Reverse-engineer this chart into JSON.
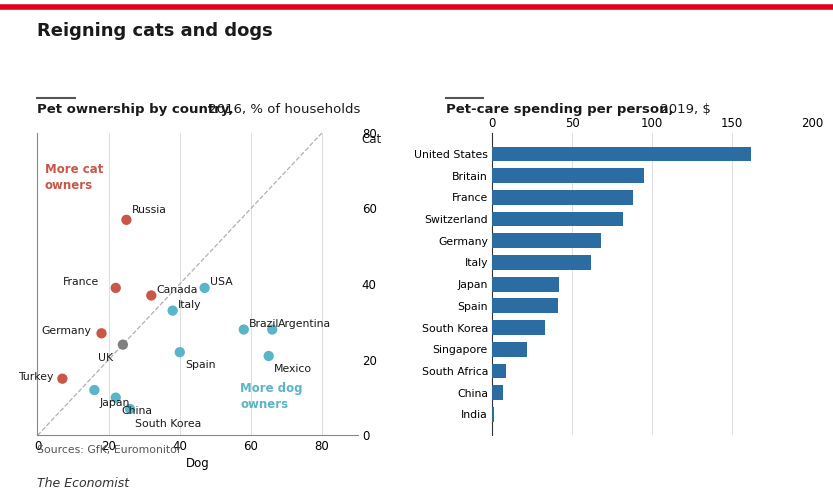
{
  "title": "Reigning cats and dogs",
  "title_red_color": "#e3001b",
  "scatter_subtitle_bold": "Pet ownership by country,",
  "scatter_subtitle_light": " 2016, % of households",
  "bar_subtitle_bold": "Pet-care spending per person,",
  "bar_subtitle_light": " 2019, $",
  "sources": "Sources: GfK; Euromonitor",
  "branding": "The Economist",
  "scatter": {
    "countries": [
      {
        "name": "Russia",
        "dog": 25,
        "cat": 57,
        "color": "#c8574a"
      },
      {
        "name": "France",
        "dog": 22,
        "cat": 39,
        "color": "#c8574a"
      },
      {
        "name": "Canada",
        "dog": 32,
        "cat": 37,
        "color": "#c8574a"
      },
      {
        "name": "USA",
        "dog": 47,
        "cat": 39,
        "color": "#5ab5c8"
      },
      {
        "name": "Italy",
        "dog": 38,
        "cat": 33,
        "color": "#5ab5c8"
      },
      {
        "name": "Germany",
        "dog": 18,
        "cat": 27,
        "color": "#c8574a"
      },
      {
        "name": "UK",
        "dog": 24,
        "cat": 24,
        "color": "#808080"
      },
      {
        "name": "Turkey",
        "dog": 7,
        "cat": 15,
        "color": "#c8574a"
      },
      {
        "name": "Japan",
        "dog": 16,
        "cat": 12,
        "color": "#5ab5c8"
      },
      {
        "name": "China",
        "dog": 22,
        "cat": 10,
        "color": "#5ab5c8"
      },
      {
        "name": "South Korea",
        "dog": 26,
        "cat": 7,
        "color": "#5ab5c8"
      },
      {
        "name": "Spain",
        "dog": 40,
        "cat": 22,
        "color": "#5ab5c8"
      },
      {
        "name": "Brazil",
        "dog": 58,
        "cat": 28,
        "color": "#5ab5c8"
      },
      {
        "name": "Argentina",
        "dog": 66,
        "cat": 28,
        "color": "#5ab5c8"
      },
      {
        "name": "Mexico",
        "dog": 65,
        "cat": 21,
        "color": "#5ab5c8"
      }
    ],
    "xlim": [
      0,
      90
    ],
    "ylim": [
      0,
      80
    ],
    "xticks": [
      0,
      20,
      40,
      60,
      80
    ],
    "yticks": [
      0,
      20,
      40,
      60,
      80
    ],
    "xlabel": "Dog",
    "more_cat_color": "#c8574a",
    "more_dog_color": "#5ab5c8",
    "grid_color": "#d0d0d0",
    "dot_size": 55,
    "label_offsets": {
      "Russia": [
        1.5,
        2.5
      ],
      "France": [
        -15,
        1.5
      ],
      "Canada": [
        1.5,
        1.5
      ],
      "USA": [
        1.5,
        1.5
      ],
      "Italy": [
        1.5,
        1.5
      ],
      "Germany": [
        -17,
        0.5
      ],
      "UK": [
        -7,
        -3.5
      ],
      "Turkey": [
        -12.5,
        0.5
      ],
      "Japan": [
        1.5,
        -3.5
      ],
      "China": [
        1.5,
        -3.5
      ],
      "South Korea": [
        1.5,
        -4
      ],
      "Spain": [
        1.5,
        -3.5
      ],
      "Brazil": [
        1.5,
        1.5
      ],
      "Argentina": [
        1.5,
        1.5
      ],
      "Mexico": [
        1.5,
        -3.5
      ]
    }
  },
  "bar": {
    "countries": [
      "United States",
      "Britain",
      "France",
      "Switzerland",
      "Germany",
      "Italy",
      "Japan",
      "Spain",
      "South Korea",
      "Singapore",
      "South Africa",
      "China",
      "India"
    ],
    "values": [
      162,
      95,
      88,
      82,
      68,
      62,
      42,
      41,
      33,
      22,
      9,
      7,
      1
    ],
    "color": "#2b6ca3",
    "xlim": [
      0,
      200
    ],
    "xticks": [
      0,
      50,
      100,
      150,
      200
    ],
    "grid_color": "#d0d0d0"
  },
  "bg_color": "#ffffff",
  "text_color": "#1a1a1a",
  "label_fontsize": 7.8,
  "axis_fontsize": 8.5,
  "subtitle_fontsize": 9.5
}
